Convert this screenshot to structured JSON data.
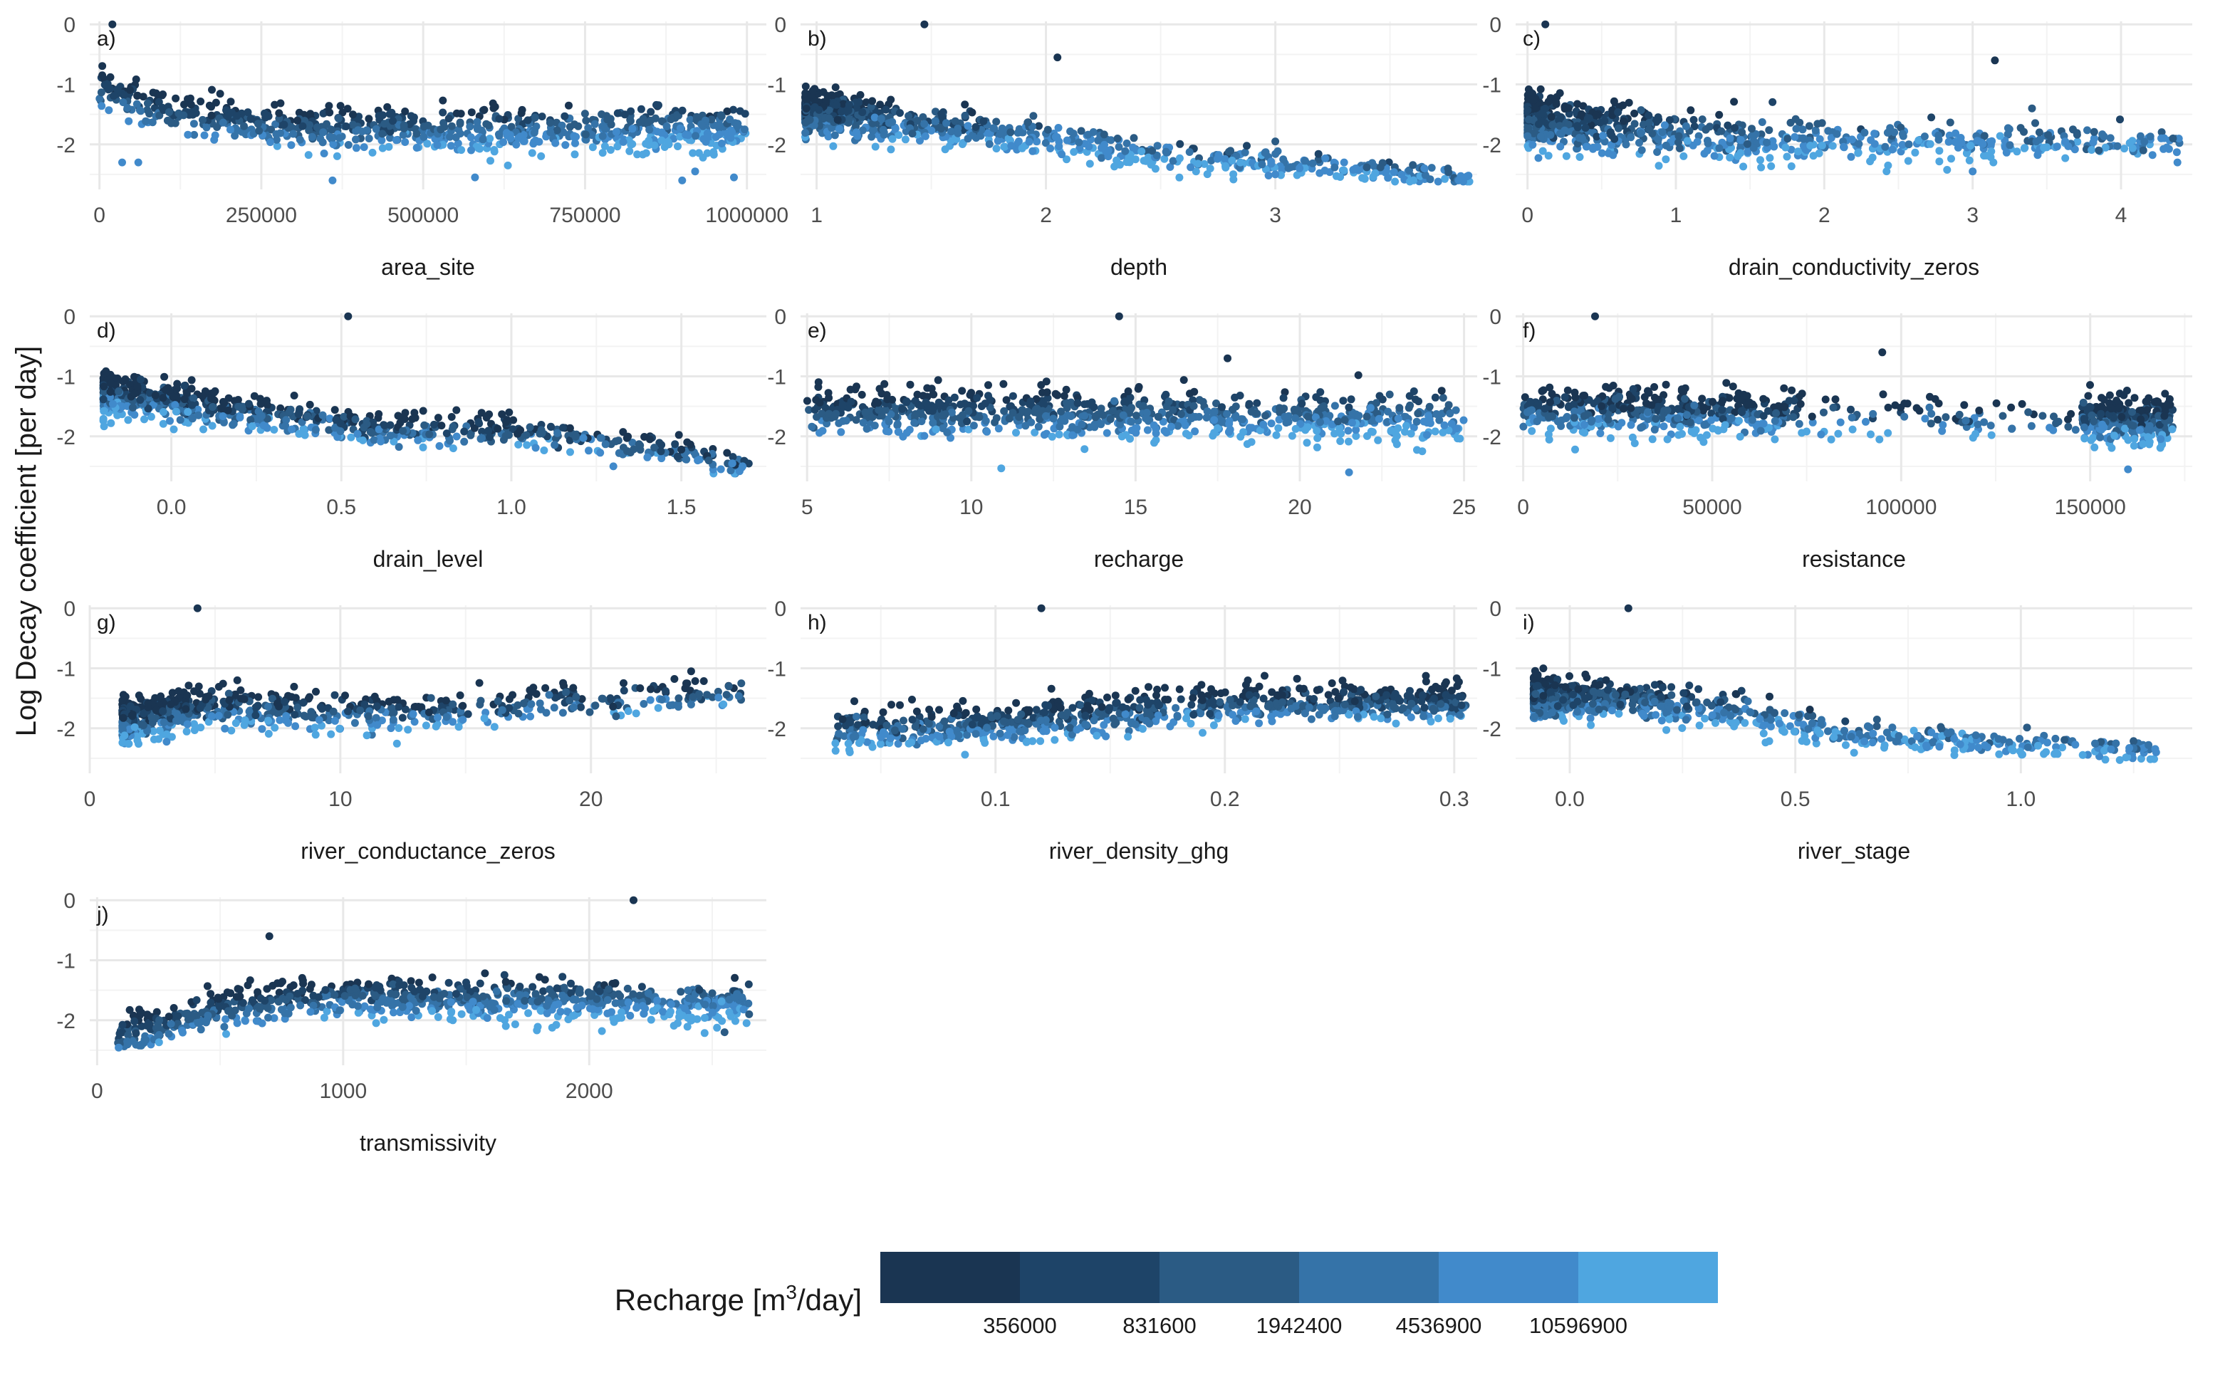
{
  "ylabel": "Log Decay coefficient [per day]",
  "colors": {
    "palette": [
      "#1a3552",
      "#1e4468",
      "#2b5b84",
      "#3573a8",
      "#418acb",
      "#4fa6e0"
    ],
    "grid_major": "#e8e8e8",
    "grid_minor": "#f3f3f3",
    "text": "#1a1a1a",
    "axis_text": "#4d4d4d"
  },
  "legend": {
    "title_prefix": "Recharge [m",
    "title_sup": "3",
    "title_suffix": "/day]",
    "breaks": [
      "356000",
      "831600",
      "1942400",
      "4536900",
      "10596900"
    ]
  },
  "chart_data": [
    {
      "type": "scatter",
      "tag": "a)",
      "xlabel": "area_site",
      "xlim": [
        -15000,
        1030000
      ],
      "xticks": [
        0,
        250000,
        500000,
        750000,
        1000000
      ],
      "xtick_labels": [
        "0",
        "250000",
        "500000",
        "750000",
        "1000000"
      ],
      "ylim": [
        -2.75,
        0.05
      ],
      "yticks": [
        0,
        -1,
        -2
      ],
      "ytick_labels": [
        "0",
        "-1",
        "-2"
      ],
      "n": 750,
      "x_range": [
        0,
        1000000
      ],
      "x_density": "uniform",
      "trend": [
        [
          0,
          -1.05
        ],
        [
          100000,
          -1.45
        ],
        [
          300000,
          -1.75
        ],
        [
          1000000,
          -1.78
        ]
      ],
      "spread": 0.32,
      "color_trend": "light-increasing",
      "outliers": [
        [
          20000,
          0.0
        ],
        [
          35000,
          -2.3
        ],
        [
          60000,
          -2.3
        ],
        [
          360000,
          -2.6
        ],
        [
          580000,
          -2.55
        ],
        [
          920000,
          -2.45
        ],
        [
          900000,
          -2.6
        ],
        [
          980000,
          -2.55
        ]
      ]
    },
    {
      "type": "scatter",
      "tag": "b)",
      "xlabel": "depth",
      "xlim": [
        0.93,
        3.88
      ],
      "xticks": [
        1,
        2,
        3
      ],
      "xtick_labels": [
        "1",
        "2",
        "3"
      ],
      "ylim": [
        -2.75,
        0.05
      ],
      "yticks": [
        0,
        -1,
        -2
      ],
      "ytick_labels": [
        "0",
        "-1",
        "-2"
      ],
      "n": 800,
      "x_range": [
        0.95,
        3.85
      ],
      "x_density": "dense-low",
      "trend": [
        [
          1.0,
          -1.45
        ],
        [
          2.0,
          -1.9
        ],
        [
          2.5,
          -2.2
        ],
        [
          3.8,
          -2.55
        ]
      ],
      "spread": 0.3,
      "color_trend": "dark-low-light-high",
      "outliers": [
        [
          1.47,
          0.0
        ],
        [
          3.0,
          -1.95
        ],
        [
          3.0,
          -2.5
        ],
        [
          2.05,
          -0.55
        ],
        [
          3.3,
          -2.3
        ],
        [
          3.35,
          -2.4
        ],
        [
          3.65,
          -2.4
        ],
        [
          3.8,
          -2.6
        ]
      ]
    },
    {
      "type": "scatter",
      "tag": "c)",
      "xlabel": "drain_conductivity_zeros",
      "xlim": [
        -0.08,
        4.48
      ],
      "xticks": [
        0,
        1,
        2,
        3,
        4
      ],
      "xtick_labels": [
        "0",
        "1",
        "2",
        "3",
        "4"
      ],
      "ylim": [
        -2.75,
        0.05
      ],
      "yticks": [
        0,
        -1,
        -2
      ],
      "ytick_labels": [
        "0",
        "-1",
        "-2"
      ],
      "n": 780,
      "x_range": [
        0.0,
        4.4
      ],
      "x_density": "dense-low",
      "trend": [
        [
          0.0,
          -1.55
        ],
        [
          0.5,
          -1.75
        ],
        [
          1.5,
          -1.95
        ],
        [
          4.4,
          -2.0
        ]
      ],
      "spread": 0.38,
      "color_trend": "dark-low",
      "outliers": [
        [
          0.12,
          0.0
        ],
        [
          3.15,
          -0.6
        ],
        [
          3.4,
          -1.4
        ],
        [
          3.45,
          -1.8
        ],
        [
          4.35,
          -1.9
        ],
        [
          4.38,
          -2.3
        ],
        [
          3.85,
          -2.1
        ],
        [
          4.15,
          -2.1
        ],
        [
          3.0,
          -2.45
        ]
      ]
    },
    {
      "type": "scatter",
      "tag": "d)",
      "xlabel": "drain_level",
      "xlim": [
        -0.24,
        1.75
      ],
      "xticks": [
        0.0,
        0.5,
        1.0,
        1.5
      ],
      "xtick_labels": [
        "0.0",
        "0.5",
        "1.0",
        "1.5"
      ],
      "ylim": [
        -2.75,
        0.05
      ],
      "yticks": [
        0,
        -1,
        -2
      ],
      "ytick_labels": [
        "0",
        "-1",
        "-2"
      ],
      "n": 780,
      "x_range": [
        -0.2,
        1.7
      ],
      "x_density": "dense-low",
      "trend": [
        [
          -0.2,
          -1.3
        ],
        [
          0.2,
          -1.6
        ],
        [
          0.6,
          -1.85
        ],
        [
          1.2,
          -2.0
        ],
        [
          1.7,
          -2.45
        ]
      ],
      "spread": 0.32,
      "color_trend": "mixed",
      "outliers": [
        [
          0.52,
          0.0
        ],
        [
          1.65,
          -2.45
        ],
        [
          1.68,
          -2.5
        ],
        [
          1.4,
          -2.35
        ],
        [
          1.3,
          -2.5
        ]
      ]
    },
    {
      "type": "scatter",
      "tag": "e)",
      "xlabel": "recharge",
      "xlim": [
        4.8,
        25.4
      ],
      "xticks": [
        5,
        10,
        15,
        20,
        25
      ],
      "xtick_labels": [
        "5",
        "10",
        "15",
        "20",
        "25"
      ],
      "ylim": [
        -2.75,
        0.05
      ],
      "yticks": [
        0,
        -1,
        -2
      ],
      "ytick_labels": [
        "0",
        "-1",
        "-2"
      ],
      "n": 780,
      "x_range": [
        5,
        25
      ],
      "x_density": "uniform",
      "trend": [
        [
          5,
          -1.55
        ],
        [
          25,
          -1.75
        ]
      ],
      "spread": 0.35,
      "color_trend": "light-increasing",
      "outliers": [
        [
          14.5,
          0.0
        ],
        [
          17.8,
          -0.7
        ],
        [
          21.5,
          -2.6
        ]
      ]
    },
    {
      "type": "scatter",
      "tag": "f)",
      "xlabel": "resistance",
      "xlim": [
        -2000,
        177000
      ],
      "xticks": [
        0,
        50000,
        100000,
        150000
      ],
      "xtick_labels": [
        "0",
        "50000",
        "100000",
        "150000"
      ],
      "ylim": [
        -2.75,
        0.05
      ],
      "yticks": [
        0,
        -1,
        -2
      ],
      "ytick_labels": [
        "0",
        "-1",
        "-2"
      ],
      "n": 780,
      "x_range": [
        0,
        172000
      ],
      "x_density": "ends",
      "trend": [
        [
          0,
          -1.55
        ],
        [
          172000,
          -1.75
        ]
      ],
      "spread": 0.35,
      "color_trend": "mixed",
      "outliers": [
        [
          19000,
          0.0
        ],
        [
          95000,
          -0.6
        ],
        [
          160000,
          -2.55
        ]
      ]
    },
    {
      "type": "scatter",
      "tag": "g)",
      "xlabel": "river_conductance_zeros",
      "xlim": [
        0,
        27
      ],
      "xticks": [
        0,
        10,
        20
      ],
      "xtick_labels": [
        "0",
        "10",
        "20"
      ],
      "ylim": [
        -2.75,
        0.05
      ],
      "yticks": [
        0,
        -1,
        -2
      ],
      "ytick_labels": [
        "0",
        "-1",
        "-2"
      ],
      "n": 700,
      "x_range": [
        1.3,
        26
      ],
      "x_density": "dense-low",
      "trend": [
        [
          1.3,
          -1.9
        ],
        [
          5,
          -1.65
        ],
        [
          12,
          -1.75
        ],
        [
          26,
          -1.4
        ]
      ],
      "spread": 0.35,
      "color_trend": "dark-mid",
      "outliers": [
        [
          4.3,
          0.0
        ],
        [
          24,
          -1.05
        ],
        [
          25.5,
          -1.3
        ],
        [
          26,
          -1.25
        ],
        [
          23.5,
          -1.5
        ],
        [
          21,
          -1.8
        ],
        [
          19,
          -1.4
        ]
      ]
    },
    {
      "type": "scatter",
      "tag": "h)",
      "xlabel": "river_density_ghg",
      "xlim": [
        0.015,
        0.31
      ],
      "xticks": [
        0.1,
        0.2,
        0.3
      ],
      "xtick_labels": [
        "0.1",
        "0.2",
        "0.3"
      ],
      "ylim": [
        -2.75,
        0.05
      ],
      "yticks": [
        0,
        -1,
        -2
      ],
      "ytick_labels": [
        "0",
        "-1",
        "-2"
      ],
      "n": 780,
      "x_range": [
        0.03,
        0.305
      ],
      "x_density": "uniform",
      "trend": [
        [
          0.03,
          -2.05
        ],
        [
          0.1,
          -1.95
        ],
        [
          0.2,
          -1.6
        ],
        [
          0.305,
          -1.55
        ]
      ],
      "spread": 0.3,
      "color_trend": "dark-high",
      "outliers": [
        [
          0.12,
          0.0
        ]
      ]
    },
    {
      "type": "scatter",
      "tag": "i)",
      "xlabel": "river_stage",
      "xlim": [
        -0.12,
        1.38
      ],
      "xticks": [
        0.0,
        0.5,
        1.0
      ],
      "xtick_labels": [
        "0.0",
        "0.5",
        "1.0"
      ],
      "ylim": [
        -2.75,
        0.05
      ],
      "yticks": [
        0,
        -1,
        -2
      ],
      "ytick_labels": [
        "0",
        "-1",
        "-2"
      ],
      "n": 780,
      "x_range": [
        -0.08,
        1.3
      ],
      "x_density": "dense-low",
      "trend": [
        [
          -0.08,
          -1.45
        ],
        [
          0.3,
          -1.65
        ],
        [
          0.6,
          -2.1
        ],
        [
          1.3,
          -2.4
        ]
      ],
      "spread": 0.3,
      "color_trend": "dark-low",
      "outliers": [
        [
          0.13,
          0.0
        ],
        [
          1.2,
          -2.35
        ],
        [
          1.3,
          -2.4
        ]
      ]
    },
    {
      "type": "scatter",
      "tag": "j)",
      "xlabel": "transmissivity",
      "xlim": [
        -30,
        2720
      ],
      "xticks": [
        0,
        1000,
        2000
      ],
      "xtick_labels": [
        "0",
        "1000",
        "2000"
      ],
      "ylim": [
        -2.75,
        0.05
      ],
      "yticks": [
        0,
        -1,
        -2
      ],
      "ytick_labels": [
        "0",
        "-1",
        "-2"
      ],
      "n": 780,
      "x_range": [
        80,
        2650
      ],
      "x_density": "uniform",
      "trend": [
        [
          80,
          -2.25
        ],
        [
          400,
          -1.85
        ],
        [
          1000,
          -1.6
        ],
        [
          2650,
          -1.75
        ]
      ],
      "spread": 0.3,
      "color_trend": "light-increasing",
      "outliers": [
        [
          2180,
          0.0
        ],
        [
          700,
          -0.6
        ],
        [
          2550,
          -2.2
        ],
        [
          2650,
          -1.9
        ]
      ]
    }
  ]
}
